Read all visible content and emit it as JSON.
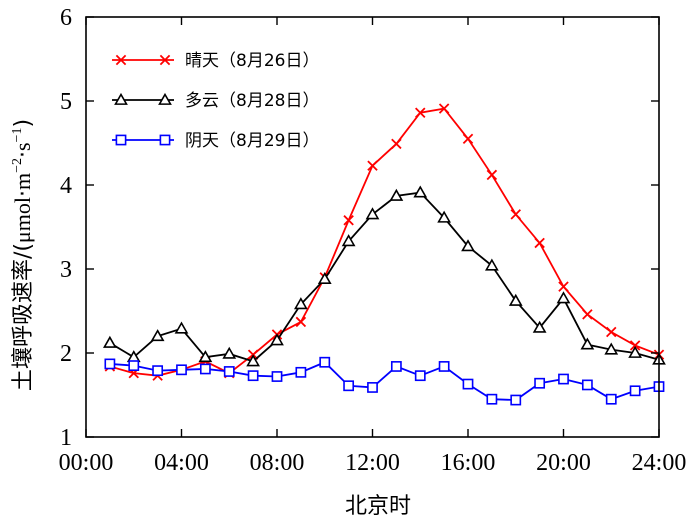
{
  "chart_data": {
    "type": "line",
    "xlabel": "北京时",
    "ylabel": "土壤呼吸速率/(μmol·m⁻²·s⁻¹)",
    "ylabel_parts": {
      "main": "土壤呼吸速率/(",
      "mu": "μ",
      "mol": "mol",
      "m": "m",
      "exp_m": "−2",
      "s": "s",
      "exp_s": "−1",
      "close": ")"
    },
    "xlim": [
      0,
      24
    ],
    "ylim": [
      1,
      6
    ],
    "x_ticks": [
      0,
      4,
      8,
      12,
      16,
      20,
      24
    ],
    "x_tick_labels": [
      "00:00",
      "04:00",
      "08:00",
      "12:00",
      "16:00",
      "20:00",
      "24:00"
    ],
    "y_ticks": [
      1,
      2,
      3,
      4,
      5,
      6
    ],
    "y_tick_labels": [
      "1",
      "2",
      "3",
      "4",
      "5",
      "6"
    ],
    "legend_position": "top-left",
    "grid": false,
    "series": [
      {
        "name": "晴天（8月26日）",
        "color": "#ff0000",
        "marker": "x",
        "x": [
          1,
          2,
          3,
          4,
          5,
          6,
          7,
          8,
          9,
          10,
          11,
          12,
          13,
          14,
          15,
          16,
          17,
          18,
          19,
          20,
          21,
          22,
          23,
          24
        ],
        "values": [
          1.84,
          1.76,
          1.73,
          1.8,
          1.9,
          1.76,
          1.98,
          2.22,
          2.37,
          2.9,
          3.58,
          4.23,
          4.49,
          4.86,
          4.91,
          4.55,
          4.12,
          3.65,
          3.31,
          2.79,
          2.46,
          2.25,
          2.09,
          1.98
        ]
      },
      {
        "name": "多云（8月28日）",
        "color": "#000000",
        "marker": "triangle",
        "x": [
          1,
          2,
          3,
          4,
          5,
          6,
          7,
          8,
          9,
          10,
          11,
          12,
          13,
          14,
          15,
          16,
          17,
          18,
          19,
          20,
          21,
          22,
          23,
          24
        ],
        "values": [
          2.12,
          1.95,
          2.2,
          2.29,
          1.95,
          1.99,
          1.9,
          2.15,
          2.58,
          2.88,
          3.33,
          3.65,
          3.87,
          3.91,
          3.61,
          3.27,
          3.04,
          2.62,
          2.3,
          2.65,
          2.1,
          2.04,
          2.0,
          1.92
        ]
      },
      {
        "name": "阴天（8月29日）",
        "color": "#0000ff",
        "marker": "square",
        "x": [
          1,
          2,
          3,
          4,
          5,
          6,
          7,
          8,
          9,
          10,
          11,
          12,
          13,
          14,
          15,
          16,
          17,
          18,
          19,
          20,
          21,
          22,
          23,
          24
        ],
        "values": [
          1.87,
          1.85,
          1.79,
          1.8,
          1.81,
          1.78,
          1.73,
          1.72,
          1.77,
          1.89,
          1.61,
          1.59,
          1.84,
          1.73,
          1.84,
          1.63,
          1.45,
          1.44,
          1.64,
          1.69,
          1.62,
          1.45,
          1.55,
          1.6
        ]
      }
    ]
  }
}
